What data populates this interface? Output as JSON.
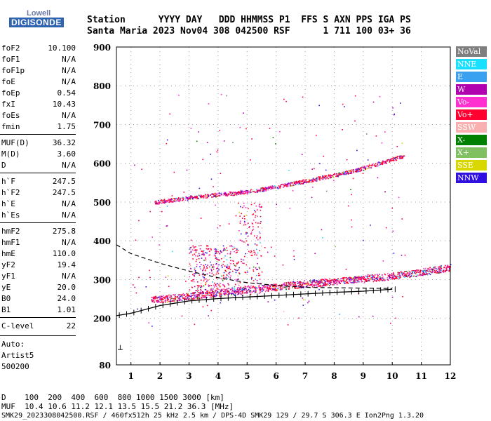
{
  "logo": {
    "top": "Lowell",
    "main": "DIGISONDE"
  },
  "header": {
    "line1": "Station      YYYY DAY   DDD HHMMSS P1  FFS S AXN PPS IGA PS",
    "line2": "Santa Maria 2023 Nov04 308 042500 RSF      1 711 100 03+ 36"
  },
  "params": [
    {
      "name": "foF2",
      "value": "10.100"
    },
    {
      "name": "foF1",
      "value": "N/A"
    },
    {
      "name": "foF1p",
      "value": "N/A"
    },
    {
      "name": "foE",
      "value": "N/A"
    },
    {
      "name": "foEp",
      "value": "0.54"
    },
    {
      "name": "fxI",
      "value": "10.43"
    },
    {
      "name": "foEs",
      "value": "N/A"
    },
    {
      "name": "fmin",
      "value": "1.75"
    },
    {
      "name": "MUF(D)",
      "value": "36.32"
    },
    {
      "name": "M(D)",
      "value": "3.60"
    },
    {
      "name": "D",
      "value": "N/A"
    },
    {
      "name": "h`F",
      "value": "247.5"
    },
    {
      "name": "h`F2",
      "value": "247.5"
    },
    {
      "name": "h`E",
      "value": "N/A"
    },
    {
      "name": "h`Es",
      "value": "N/A"
    },
    {
      "name": "hmF2",
      "value": "275.8"
    },
    {
      "name": "hmF1",
      "value": "N/A"
    },
    {
      "name": "hmE",
      "value": "110.0"
    },
    {
      "name": "yF2",
      "value": "19.4"
    },
    {
      "name": "yF1",
      "value": "N/A"
    },
    {
      "name": "yE",
      "value": "20.0"
    },
    {
      "name": "B0",
      "value": "24.0"
    },
    {
      "name": "B1",
      "value": "1.01"
    },
    {
      "name": "C-level",
      "value": "22"
    }
  ],
  "auto": [
    "Auto:",
    "Artist5",
    "500200"
  ],
  "legend": [
    {
      "label": "NoVal",
      "color": "#7f7f7f"
    },
    {
      "label": "NNE",
      "color": "#19e0ff"
    },
    {
      "label": "E",
      "color": "#3aa0f0"
    },
    {
      "label": "W",
      "color": "#b000b0"
    },
    {
      "label": "Vo-",
      "color": "#ff30d0"
    },
    {
      "label": "Vo+",
      "color": "#ff0030"
    },
    {
      "label": "SSW",
      "color": "#f8b0b0"
    },
    {
      "label": "X-",
      "color": "#008000"
    },
    {
      "label": "X+",
      "color": "#80c060"
    },
    {
      "label": "SSE",
      "color": "#d8d800"
    },
    {
      "label": "NNW",
      "color": "#3010e0"
    }
  ],
  "footer": {
    "line1": "D    100  200  400  600  800 1000 1500 3000 [km]",
    "line2": "MUF  10.4 10.6 11.2 12.1 13.5 15.5 21.2 36.3 [MHz]",
    "line3": "SMK29_2023308042500.RSF / 460fx512h 25 kHz 2.5 km / DPS-4D SMK29 129 / 29.7 S 306.3 E Ion2Png 1.3.20"
  },
  "chart_data": {
    "type": "scatter",
    "xlim": [
      0.5,
      12
    ],
    "ylim": [
      80,
      900
    ],
    "x_ticks": [
      1,
      2,
      3,
      4,
      5,
      6,
      7,
      8,
      9,
      10,
      11,
      12
    ],
    "y_ticks": [
      80,
      200,
      300,
      400,
      500,
      600,
      700,
      800,
      900
    ],
    "o_trace": {
      "x": [
        1.7,
        3,
        4,
        5,
        6,
        7,
        8,
        9,
        10,
        11,
        12
      ],
      "y": [
        248,
        258,
        266,
        275,
        282,
        290,
        296,
        302,
        310,
        320,
        332
      ]
    },
    "x_trace": {
      "x": [
        1.8,
        3,
        4,
        5,
        6,
        7,
        8,
        9,
        10.4
      ],
      "y": [
        500,
        512,
        520,
        527,
        540,
        555,
        570,
        588,
        620
      ]
    },
    "profile": {
      "x": [
        0.5,
        1,
        2,
        3,
        4,
        5,
        6,
        7,
        8,
        9,
        10
      ],
      "y": [
        207,
        213,
        233,
        245,
        251,
        255,
        259,
        263,
        267,
        270,
        275
      ]
    },
    "dashed": {
      "x": [
        0.5,
        1,
        2,
        3,
        4,
        5,
        6,
        7,
        8,
        9,
        10
      ],
      "y": [
        390,
        367,
        342,
        322,
        305,
        292,
        285,
        280,
        279,
        278,
        277
      ]
    },
    "spread_f": {
      "x": [
        3,
        4.9,
        5.3
      ],
      "y": [
        250,
        300,
        400
      ]
    }
  }
}
